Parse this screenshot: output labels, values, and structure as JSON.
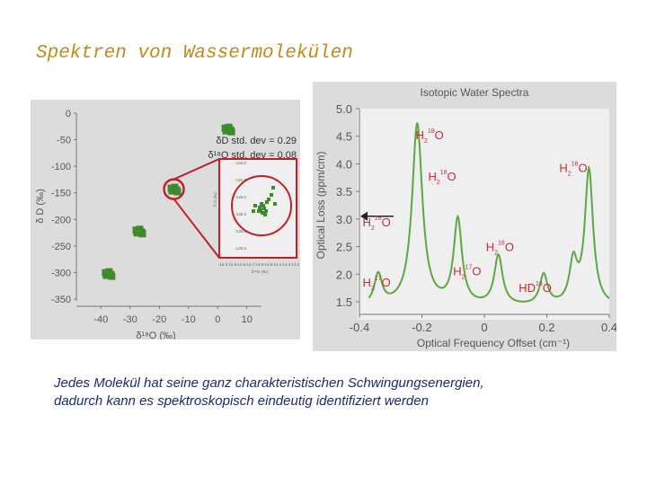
{
  "slide": {
    "title": "Spektren von Wassermolekülen",
    "caption_line1": "Jedes Molekül hat seine ganz charakteristischen Schwingungsenergien,",
    "caption_line2": "dadurch kann es spektroskopisch eindeutig identifiziert werden"
  },
  "colors": {
    "title": "#c38a1a",
    "caption": "#1f2a6a",
    "marker": "#3f8a2a",
    "spectrum": "#5fa645",
    "highlight_ring": "#c0202c"
  },
  "chart_data": [
    {
      "type": "scatter",
      "title": "",
      "xlabel": "δ¹⁸O (‰)",
      "ylabel": "δ D (‰)",
      "xlim": [
        -45,
        15
      ],
      "ylim": [
        -350,
        0
      ],
      "x_ticks": [
        "-40",
        "-30",
        "-20",
        "-10",
        "0",
        "10"
      ],
      "y_ticks": [
        "0",
        "-50",
        "-100",
        "-150",
        "-200",
        "-250",
        "-300",
        "-350"
      ],
      "annotations": [
        "δD std. dev = 0.29",
        "δ¹⁸O std. dev = 0.08"
      ],
      "clusters": [
        {
          "x": 3.5,
          "y": -30
        },
        {
          "x": -15,
          "y": -143
        },
        {
          "x": -27,
          "y": -222
        },
        {
          "x": -37.5,
          "y": -302
        }
      ],
      "inset": {
        "x_ticks": [
          "-15.0",
          "-14.9",
          "-14.8",
          "-14.7",
          "-14.6",
          "-14.5",
          "-14.4",
          "-14.3",
          "-14.2"
        ],
        "y_ticks": [
          "-134.0",
          "-134.5",
          "-135.0",
          "-135.5",
          "-136.0",
          "-136.5"
        ],
        "xlabel": "δ¹⁸O (‰)",
        "ylabel": "δ D (‰)"
      }
    },
    {
      "type": "line",
      "title": "Isotopic Water Spectra",
      "xlabel": "Optical Frequency Offset (cm⁻¹)",
      "ylabel": "Optical Loss (ppm/cm)",
      "xlim": [
        -0.4,
        0.4
      ],
      "ylim": [
        1.5,
        5.0
      ],
      "x_ticks": [
        "-0.4",
        "-0.2",
        "0",
        "0.2",
        "0.4"
      ],
      "y_ticks": [
        "5.0",
        "4.5",
        "4.0",
        "3.5",
        "3.0",
        "2.5",
        "2.0",
        "1.5"
      ],
      "baseline": 1.4,
      "peaks": [
        {
          "x": -0.34,
          "height": 0.55,
          "width": 0.015
        },
        {
          "x": -0.215,
          "height": 3.3,
          "width": 0.02
        },
        {
          "x": -0.085,
          "height": 1.55,
          "width": 0.016
        },
        {
          "x": 0.045,
          "height": 0.9,
          "width": 0.016
        },
        {
          "x": 0.19,
          "height": 0.55,
          "width": 0.015
        },
        {
          "x": 0.285,
          "height": 0.75,
          "width": 0.015
        },
        {
          "x": 0.335,
          "height": 2.45,
          "width": 0.016
        }
      ],
      "labels": [
        {
          "main": "H",
          "sub": "2",
          "sup": "18",
          "tail": "O",
          "x": -0.22,
          "y": 4.45
        },
        {
          "main": "H",
          "sub": "2",
          "sup": "16",
          "tail": "O",
          "x": -0.18,
          "y": 3.7
        },
        {
          "main": "H",
          "sub": "2",
          "sup": "16",
          "tail": "O",
          "x": 0.24,
          "y": 3.85
        },
        {
          "main": "H",
          "sub": "2",
          "sup": "16",
          "tail": "O",
          "x": -0.39,
          "y": 2.87
        },
        {
          "main": "H",
          "sub": "2",
          "sup": "16",
          "tail": "O",
          "x": 0.005,
          "y": 2.42
        },
        {
          "main": "H",
          "sub": "2",
          "sup": "17",
          "tail": "O",
          "x": -0.39,
          "y": 1.78
        },
        {
          "main": "H",
          "sub": "2",
          "sup": "17",
          "tail": "O",
          "x": -0.1,
          "y": 1.98
        },
        {
          "main": "HD",
          "sub": "",
          "sup": "16",
          "tail": "O",
          "x": 0.11,
          "y": 1.68
        }
      ]
    }
  ]
}
